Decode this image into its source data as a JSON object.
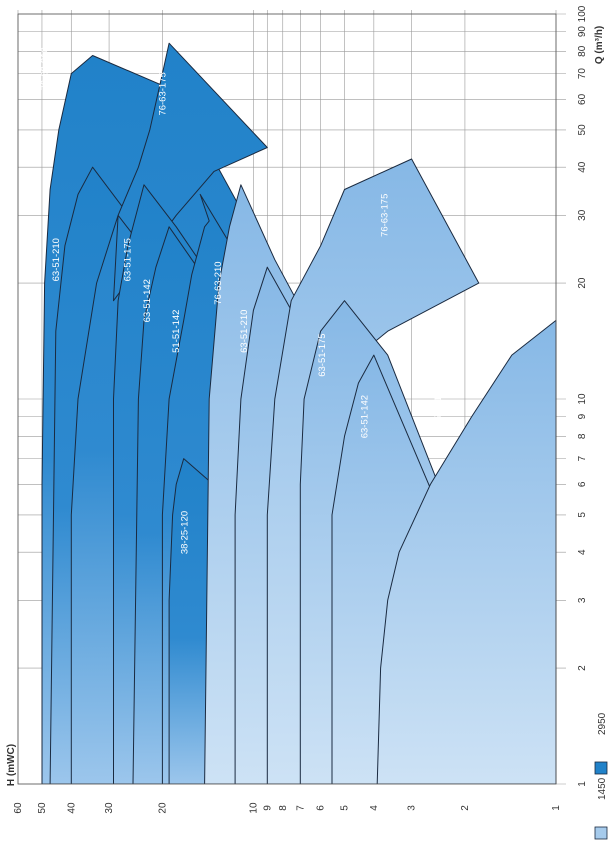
{
  "chart_data": {
    "type": "area",
    "orientation": "rotated-90-ccw",
    "x_axis": {
      "label": "Q (m³/h)",
      "scale": "log",
      "range": [
        1,
        100
      ],
      "ticks": [
        "1",
        "2",
        "3",
        "4",
        "5",
        "6",
        "7",
        "8",
        "9",
        "10",
        "20",
        "30",
        "40",
        "50",
        "60",
        "70",
        "80",
        "90",
        "100"
      ]
    },
    "y_axis": {
      "label": "H (mWC)",
      "scale": "log",
      "range": [
        1,
        60
      ],
      "ticks": [
        "1",
        "2",
        "3",
        "4",
        "5",
        "6",
        "7",
        "8",
        "9",
        "10",
        "20",
        "30",
        "40",
        "50",
        "60"
      ]
    },
    "grid": true,
    "legend": {
      "placement": "bottom-left",
      "entries": [
        {
          "label": "1450",
          "color": "#a6cbec"
        },
        {
          "label": "2950",
          "color": "#2182c9"
        }
      ]
    },
    "colors": {
      "fill_2950": "#2182c9",
      "fill_2950_light": "#9cc6ec",
      "fill_1450": "#86b8e6",
      "fill_1450_light": "#cde2f5",
      "outline": "#1a2a40"
    },
    "series": [
      {
        "name": "76-63-210",
        "speed": "2950",
        "points": [
          [
            1,
            50
          ],
          [
            6,
            50
          ],
          [
            20,
            49
          ],
          [
            35,
            47
          ],
          [
            50,
            44
          ],
          [
            70,
            40
          ],
          [
            78,
            34
          ],
          [
            63,
            18
          ]
        ]
      },
      {
        "name": "63-51-210",
        "speed": "2950",
        "points": [
          [
            1,
            47
          ],
          [
            15,
            45
          ],
          [
            25,
            42
          ],
          [
            34,
            38
          ],
          [
            40,
            34
          ]
        ]
      },
      {
        "name": "76-63-175",
        "speed": "2950",
        "points": [
          [
            1,
            40
          ],
          [
            5,
            40
          ],
          [
            10,
            38
          ],
          [
            20,
            33
          ],
          [
            30,
            28
          ],
          [
            40,
            24
          ],
          [
            50,
            22
          ],
          [
            70,
            20
          ],
          [
            84,
            19
          ],
          [
            45,
            9
          ],
          [
            39,
            13.5
          ],
          [
            30,
            18
          ],
          [
            22,
            24
          ],
          [
            18,
            29
          ],
          [
            30,
            28
          ]
        ]
      },
      {
        "name": "63-51-175",
        "speed": "2950",
        "points": [
          [
            1,
            29
          ],
          [
            10,
            29
          ],
          [
            18,
            28
          ],
          [
            25,
            26
          ],
          [
            36,
            23
          ],
          [
            28,
            18
          ]
        ]
      },
      {
        "name": "63-51-142",
        "speed": "2950",
        "points": [
          [
            1,
            25
          ],
          [
            10,
            24
          ],
          [
            16,
            23
          ],
          [
            22,
            21
          ],
          [
            28,
            19
          ]
        ]
      },
      {
        "name": "51-51-142",
        "speed": "2950",
        "points": [
          [
            1,
            20
          ],
          [
            5,
            20
          ],
          [
            10,
            19
          ],
          [
            16,
            17
          ],
          [
            21,
            16
          ],
          [
            28,
            14.5
          ],
          [
            29,
            14
          ],
          [
            34,
            15
          ]
        ]
      },
      {
        "name": "38-25-120",
        "speed": "2950",
        "points": [
          [
            1,
            19
          ],
          [
            3,
            19
          ],
          [
            5,
            18.5
          ],
          [
            6,
            18
          ],
          [
            7,
            17
          ]
        ]
      },
      {
        "name": "76-63-210",
        "speed": "1450",
        "points": [
          [
            1,
            14.5
          ],
          [
            10,
            14
          ],
          [
            20,
            13
          ],
          [
            28,
            12
          ],
          [
            36,
            11
          ],
          [
            23,
            8.5
          ]
        ]
      },
      {
        "name": "63-51-210",
        "speed": "1450",
        "points": [
          [
            1,
            11.5
          ],
          [
            5,
            11.5
          ],
          [
            10,
            11
          ],
          [
            17,
            10
          ],
          [
            22,
            9
          ]
        ]
      },
      {
        "name": "76-63-175",
        "speed": "1450",
        "points": [
          [
            1,
            9
          ],
          [
            5,
            9
          ],
          [
            10,
            8.5
          ],
          [
            18,
            7.5
          ],
          [
            25,
            6
          ],
          [
            35,
            5
          ],
          [
            42,
            3
          ],
          [
            20,
            1.8
          ],
          [
            15,
            3.6
          ],
          [
            13,
            4.5
          ]
        ]
      },
      {
        "name": "63-51-175",
        "speed": "1450",
        "points": [
          [
            1,
            7
          ],
          [
            6,
            7
          ],
          [
            10,
            6.8
          ],
          [
            15,
            6
          ],
          [
            18,
            5
          ],
          [
            13,
            3.6
          ]
        ]
      },
      {
        "name": "63-51-142",
        "speed": "1450",
        "points": [
          [
            1,
            5.5
          ],
          [
            5,
            5.5
          ],
          [
            8,
            5
          ],
          [
            11,
            4.5
          ],
          [
            13,
            4
          ]
        ]
      },
      {
        "name": "51-51-142",
        "speed": "1450",
        "points": [
          [
            1,
            3.9
          ],
          [
            2,
            3.8
          ],
          [
            3,
            3.6
          ],
          [
            4,
            3.3
          ],
          [
            6,
            2.6
          ],
          [
            9,
            1.9
          ],
          [
            13,
            1.4
          ],
          [
            16,
            1
          ],
          [
            8,
            1
          ]
        ]
      }
    ],
    "curve_labels": [
      {
        "text": "76-63-210",
        "speed": "2950"
      },
      {
        "text": "63-51-210",
        "speed": "2950"
      },
      {
        "text": "76-63-175",
        "speed": "2950"
      },
      {
        "text": "63-51-175",
        "speed": "2950"
      },
      {
        "text": "63-51-142",
        "speed": "2950"
      },
      {
        "text": "51-51-142",
        "speed": "2950"
      },
      {
        "text": "38-25-120",
        "speed": "2950"
      },
      {
        "text": "76-63-210",
        "speed": "1450"
      },
      {
        "text": "63-51-210",
        "speed": "1450"
      },
      {
        "text": "76-63-175",
        "speed": "1450"
      },
      {
        "text": "63-51-175",
        "speed": "1450"
      },
      {
        "text": "63-51-142",
        "speed": "1450"
      },
      {
        "text": "51-51-142",
        "speed": "1450"
      }
    ]
  }
}
